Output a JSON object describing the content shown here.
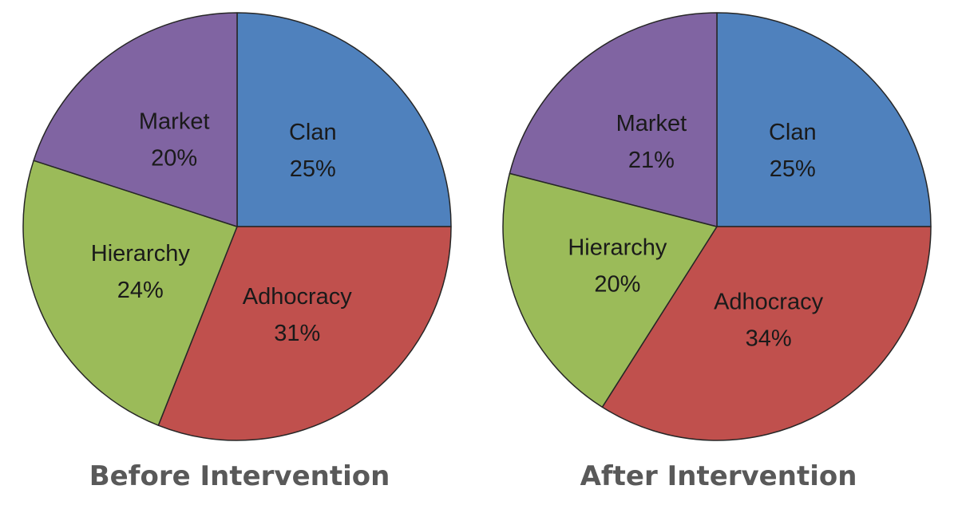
{
  "chart_data": [
    {
      "type": "pie",
      "title": "Before Intervention",
      "categories": [
        "Clan",
        "Adhocracy",
        "Hierarchy",
        "Market"
      ],
      "values": [
        25,
        31,
        24,
        20
      ],
      "value_labels": [
        "25%",
        "31%",
        "24%",
        "20%"
      ],
      "start_angle": "12 o'clock",
      "direction": "clockwise",
      "legend": "none"
    },
    {
      "type": "pie",
      "title": "After Intervention",
      "categories": [
        "Clan",
        "Adhocracy",
        "Hierarchy",
        "Market"
      ],
      "values": [
        25,
        34,
        20,
        21
      ],
      "value_labels": [
        "25%",
        "34%",
        "20%",
        "21%"
      ],
      "start_angle": "12 o'clock",
      "direction": "clockwise",
      "legend": "none"
    }
  ],
  "colors": {
    "Clan": "#4F81BD",
    "Adhocracy": "#C0504D",
    "Hierarchy": "#9BBB59",
    "Market": "#8064A2",
    "outline": "#262626",
    "caption": "#595959"
  }
}
